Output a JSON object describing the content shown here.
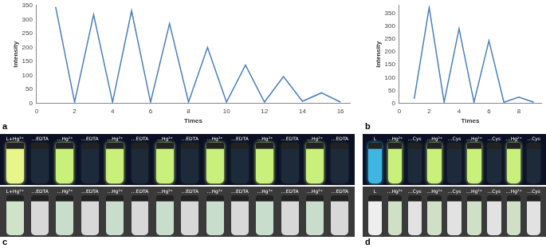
{
  "chart_data": [
    {
      "type": "line",
      "title": "a",
      "x_label": "Times",
      "y_label": "Intensity",
      "x": [
        1,
        2,
        3,
        4,
        5,
        6,
        7,
        8,
        9,
        10,
        11,
        12,
        13,
        14,
        15,
        16
      ],
      "values": [
        345,
        5,
        317,
        5,
        331,
        5,
        285,
        5,
        200,
        5,
        137,
        5,
        96,
        8,
        38,
        5
      ],
      "xlim": [
        0,
        16.5
      ],
      "xticks": [
        0,
        2,
        4,
        6,
        8,
        10,
        12,
        14,
        16
      ],
      "ylim": [
        0,
        350
      ],
      "yticks": [
        0,
        50,
        100,
        150,
        200,
        250,
        300,
        350
      ],
      "color": "#4a7ebb",
      "marker": "none",
      "line_style": "solid",
      "grid": false
    },
    {
      "type": "line",
      "title": "b",
      "x_label": "Times",
      "y_label": "Intensity",
      "x": [
        1,
        2,
        3,
        4,
        5,
        6,
        7,
        8,
        9
      ],
      "values": [
        18,
        372,
        5,
        290,
        5,
        243,
        5,
        25,
        5
      ],
      "xlim": [
        0,
        9.5
      ],
      "xticks": [
        0,
        2,
        4,
        6,
        8
      ],
      "ylim": [
        0,
        380
      ],
      "yticks": [
        0,
        50,
        100,
        150,
        200,
        250,
        300,
        350
      ],
      "color": "#4a7ebb",
      "marker": "none",
      "line_style": "solid",
      "grid": false
    }
  ],
  "photos": [
    {
      "title": "c",
      "rows": [
        [
          "L+Hg²⁺",
          "…EDTA",
          "…Hg²⁺",
          "…EDTA",
          "…Hg²⁺",
          "…EDTA",
          "…Hg²⁺",
          "…EDTA",
          "…Hg²⁺",
          "…EDTA",
          "…Hg²⁺",
          "…EDTA",
          "…Hg²⁺",
          "…EDTA"
        ],
        [
          "L+Hg²⁺",
          "…EDTA",
          "…Hg²⁺",
          "…EDTA",
          "…Hg²⁺",
          "…EDTA",
          "…Hg²⁺",
          "…EDTA",
          "…Hg²⁺",
          "…EDTA",
          "…Hg²⁺",
          "…EDTA",
          "…Hg²⁺",
          "…EDTA"
        ]
      ]
    },
    {
      "title": "d",
      "rows": [
        [
          "L",
          "…Hg²⁺",
          "…Cys",
          "…Hg²⁺",
          "…Cys",
          "…Hg²⁺",
          "…Cys",
          "…Hg²⁺",
          "…Cys"
        ],
        [
          "L",
          "…Hg²⁺",
          "…Cys",
          "…Hg²⁺",
          "…Cys",
          "…Hg²⁺",
          "…Cys",
          "…Hg²⁺",
          "…Cys"
        ]
      ]
    }
  ]
}
